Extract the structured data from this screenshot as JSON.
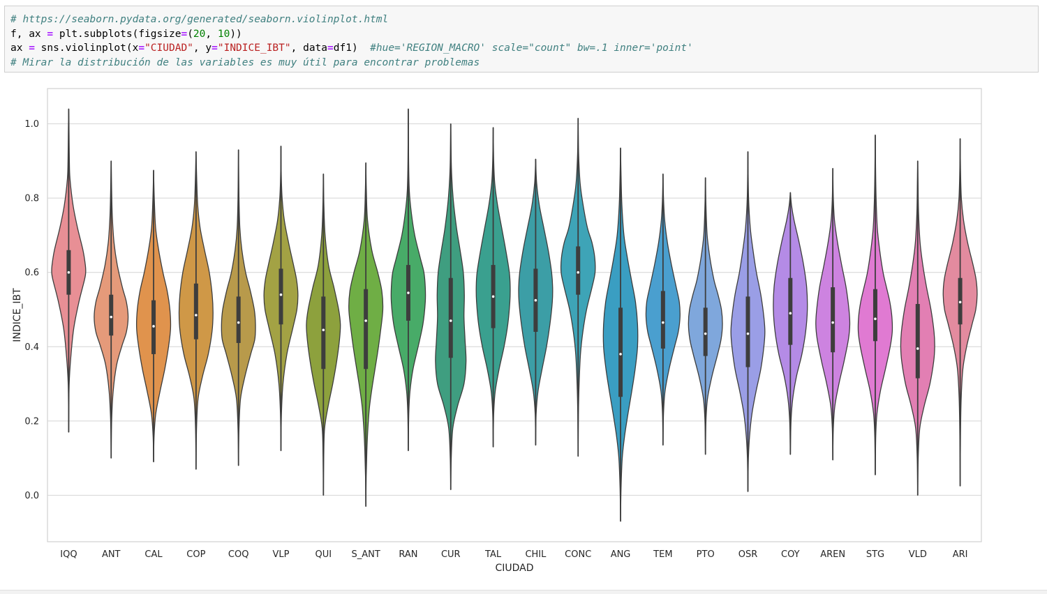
{
  "code_cell": {
    "lines": [
      [
        {
          "t": "# https://seaborn.pydata.org/generated/seaborn.violinplot.html",
          "c": "cm"
        }
      ],
      [
        {
          "t": "f, ax ",
          "c": ""
        },
        {
          "t": "=",
          "c": "op"
        },
        {
          "t": " plt.subplots(figsize",
          "c": ""
        },
        {
          "t": "=",
          "c": "op"
        },
        {
          "t": "(",
          "c": ""
        },
        {
          "t": "20",
          "c": "num"
        },
        {
          "t": ", ",
          "c": ""
        },
        {
          "t": "10",
          "c": "num"
        },
        {
          "t": "))",
          "c": ""
        }
      ],
      [
        {
          "t": "ax ",
          "c": ""
        },
        {
          "t": "=",
          "c": "op"
        },
        {
          "t": " sns.violinplot(x",
          "c": ""
        },
        {
          "t": "=",
          "c": "op"
        },
        {
          "t": "\"CIUDAD\"",
          "c": "str"
        },
        {
          "t": ", y",
          "c": ""
        },
        {
          "t": "=",
          "c": "op"
        },
        {
          "t": "\"INDICE_IBT\"",
          "c": "str"
        },
        {
          "t": ", data",
          "c": ""
        },
        {
          "t": "=",
          "c": "op"
        },
        {
          "t": "df1)  ",
          "c": ""
        },
        {
          "t": "#hue='REGION_MACRO' scale=\"count\" bw=.1 inner='point'",
          "c": "cm"
        }
      ],
      [
        {
          "t": "# Mirar la distribución de las variables es muy útil para encontrar problemas",
          "c": "cm"
        }
      ]
    ]
  },
  "chart_data": {
    "type": "violin",
    "xlabel": "CIUDAD",
    "ylabel": "INDICE_IBT",
    "ylim": [
      -0.125,
      1.095
    ],
    "yticks": [
      0.0,
      0.2,
      0.4,
      0.6,
      0.8,
      1.0
    ],
    "ytick_labels": [
      "0.0",
      "0.2",
      "0.4",
      "0.6",
      "0.8",
      "1.0"
    ],
    "grid": true,
    "categories": [
      "IQQ",
      "ANT",
      "CAL",
      "COP",
      "COQ",
      "VLP",
      "QUI",
      "S_ANT",
      "RAN",
      "CUR",
      "TAL",
      "CHIL",
      "CONC",
      "ANG",
      "TEM",
      "PTO",
      "OSR",
      "COY",
      "AREN",
      "STG",
      "VLD",
      "ARI"
    ],
    "colors": [
      "#e88f95",
      "#e59a7a",
      "#e0934d",
      "#cf9847",
      "#b89a4b",
      "#a3a244",
      "#8da13d",
      "#6fae45",
      "#48ab68",
      "#3f9e80",
      "#3aa08f",
      "#3c9ea6",
      "#3ea4b7",
      "#3a9ec2",
      "#4a9fcf",
      "#7fa7dc",
      "#9a9ee6",
      "#b48be6",
      "#cd83e0",
      "#e07ad2",
      "#e27fb3",
      "#e38b9f"
    ],
    "stats": [
      {
        "min": 0.17,
        "max": 1.04,
        "q1": 0.54,
        "median": 0.6,
        "q3": 0.66
      },
      {
        "min": 0.1,
        "max": 0.9,
        "q1": 0.43,
        "median": 0.48,
        "q3": 0.54
      },
      {
        "min": 0.09,
        "max": 0.875,
        "q1": 0.38,
        "median": 0.455,
        "q3": 0.525
      },
      {
        "min": 0.07,
        "max": 0.925,
        "q1": 0.42,
        "median": 0.485,
        "q3": 0.57
      },
      {
        "min": 0.08,
        "max": 0.93,
        "q1": 0.41,
        "median": 0.465,
        "q3": 0.535
      },
      {
        "min": 0.12,
        "max": 0.94,
        "q1": 0.46,
        "median": 0.54,
        "q3": 0.61
      },
      {
        "min": 0.0,
        "max": 0.865,
        "q1": 0.34,
        "median": 0.445,
        "q3": 0.535
      },
      {
        "min": -0.03,
        "max": 0.895,
        "q1": 0.34,
        "median": 0.47,
        "q3": 0.555
      },
      {
        "min": 0.12,
        "max": 1.04,
        "q1": 0.47,
        "median": 0.545,
        "q3": 0.62
      },
      {
        "min": 0.015,
        "max": 1.0,
        "q1": 0.37,
        "median": 0.47,
        "q3": 0.585
      },
      {
        "min": 0.13,
        "max": 0.99,
        "q1": 0.45,
        "median": 0.535,
        "q3": 0.62
      },
      {
        "min": 0.135,
        "max": 0.905,
        "q1": 0.44,
        "median": 0.525,
        "q3": 0.61
      },
      {
        "min": 0.105,
        "max": 1.015,
        "q1": 0.54,
        "median": 0.6,
        "q3": 0.67
      },
      {
        "min": -0.07,
        "max": 0.935,
        "q1": 0.265,
        "median": 0.38,
        "q3": 0.505
      },
      {
        "min": 0.135,
        "max": 0.865,
        "q1": 0.395,
        "median": 0.465,
        "q3": 0.55
      },
      {
        "min": 0.11,
        "max": 0.855,
        "q1": 0.375,
        "median": 0.435,
        "q3": 0.505
      },
      {
        "min": 0.01,
        "max": 0.925,
        "q1": 0.345,
        "median": 0.435,
        "q3": 0.535
      },
      {
        "min": 0.11,
        "max": 0.815,
        "q1": 0.405,
        "median": 0.49,
        "q3": 0.585
      },
      {
        "min": 0.095,
        "max": 0.88,
        "q1": 0.385,
        "median": 0.465,
        "q3": 0.56
      },
      {
        "min": 0.055,
        "max": 0.97,
        "q1": 0.415,
        "median": 0.475,
        "q3": 0.555
      },
      {
        "min": 0.0,
        "max": 0.9,
        "q1": 0.315,
        "median": 0.395,
        "q3": 0.515
      },
      {
        "min": 0.025,
        "max": 0.96,
        "q1": 0.46,
        "median": 0.52,
        "q3": 0.585
      }
    ],
    "density": [
      {
        "y": [
          0.17,
          0.3,
          0.38,
          0.45,
          0.52,
          0.58,
          0.6,
          0.62,
          0.66,
          0.72,
          0.78,
          0.85,
          0.9,
          0.98,
          1.04
        ],
        "w": [
          0.0,
          0.03,
          0.14,
          0.3,
          0.6,
          0.93,
          1.0,
          0.98,
          0.84,
          0.52,
          0.26,
          0.08,
          0.04,
          0.02,
          0.0
        ]
      },
      {
        "y": [
          0.1,
          0.2,
          0.28,
          0.35,
          0.4,
          0.44,
          0.48,
          0.52,
          0.56,
          0.62,
          0.68,
          0.75,
          0.82,
          0.9
        ],
        "w": [
          0.0,
          0.03,
          0.12,
          0.32,
          0.62,
          0.9,
          1.0,
          0.9,
          0.66,
          0.36,
          0.17,
          0.07,
          0.03,
          0.0
        ]
      },
      {
        "y": [
          0.09,
          0.16,
          0.22,
          0.28,
          0.34,
          0.4,
          0.45,
          0.5,
          0.55,
          0.6,
          0.66,
          0.72,
          0.8,
          0.875
        ],
        "w": [
          0.0,
          0.03,
          0.13,
          0.38,
          0.66,
          0.88,
          1.0,
          0.96,
          0.8,
          0.55,
          0.3,
          0.12,
          0.04,
          0.0
        ]
      },
      {
        "y": [
          0.07,
          0.18,
          0.26,
          0.32,
          0.38,
          0.44,
          0.49,
          0.54,
          0.6,
          0.66,
          0.72,
          0.78,
          0.85,
          0.925
        ],
        "w": [
          0.0,
          0.03,
          0.12,
          0.38,
          0.72,
          0.94,
          1.0,
          0.95,
          0.78,
          0.5,
          0.24,
          0.1,
          0.04,
          0.0
        ]
      },
      {
        "y": [
          0.08,
          0.18,
          0.26,
          0.32,
          0.38,
          0.42,
          0.46,
          0.5,
          0.55,
          0.6,
          0.66,
          0.72,
          0.8,
          0.93
        ],
        "w": [
          0.0,
          0.03,
          0.12,
          0.38,
          0.72,
          0.96,
          1.0,
          0.93,
          0.7,
          0.42,
          0.2,
          0.08,
          0.03,
          0.0
        ]
      },
      {
        "y": [
          0.12,
          0.22,
          0.3,
          0.38,
          0.45,
          0.5,
          0.54,
          0.58,
          0.62,
          0.68,
          0.74,
          0.8,
          0.86,
          0.94
        ],
        "w": [
          0.0,
          0.03,
          0.12,
          0.35,
          0.7,
          0.94,
          1.0,
          0.92,
          0.74,
          0.45,
          0.2,
          0.07,
          0.02,
          0.0
        ]
      },
      {
        "y": [
          0.0,
          0.1,
          0.18,
          0.24,
          0.3,
          0.36,
          0.42,
          0.46,
          0.5,
          0.56,
          0.62,
          0.7,
          0.78,
          0.865
        ],
        "w": [
          0.0,
          0.02,
          0.07,
          0.28,
          0.55,
          0.78,
          0.95,
          1.0,
          0.9,
          0.62,
          0.3,
          0.1,
          0.03,
          0.0
        ]
      },
      {
        "y": [
          -0.03,
          0.05,
          0.12,
          0.18,
          0.24,
          0.3,
          0.38,
          0.44,
          0.5,
          0.55,
          0.6,
          0.66,
          0.74,
          0.82,
          0.895
        ],
        "w": [
          0.0,
          0.02,
          0.06,
          0.12,
          0.22,
          0.4,
          0.68,
          0.86,
          1.0,
          0.94,
          0.7,
          0.35,
          0.1,
          0.03,
          0.0
        ]
      },
      {
        "y": [
          0.12,
          0.22,
          0.28,
          0.34,
          0.4,
          0.46,
          0.52,
          0.56,
          0.6,
          0.64,
          0.7,
          0.76,
          0.82,
          0.9,
          1.04
        ],
        "w": [
          0.0,
          0.03,
          0.1,
          0.28,
          0.58,
          0.86,
          1.0,
          1.0,
          0.92,
          0.7,
          0.38,
          0.18,
          0.06,
          0.02,
          0.0
        ]
      },
      {
        "y": [
          0.015,
          0.1,
          0.18,
          0.24,
          0.3,
          0.36,
          0.42,
          0.48,
          0.54,
          0.6,
          0.66,
          0.72,
          0.8,
          0.88,
          1.0
        ],
        "w": [
          0.0,
          0.03,
          0.12,
          0.4,
          0.78,
          0.9,
          0.84,
          0.78,
          0.8,
          0.74,
          0.55,
          0.34,
          0.14,
          0.04,
          0.0
        ]
      },
      {
        "y": [
          0.13,
          0.22,
          0.28,
          0.34,
          0.4,
          0.46,
          0.52,
          0.56,
          0.6,
          0.66,
          0.72,
          0.78,
          0.84,
          0.9,
          0.99
        ],
        "w": [
          0.0,
          0.03,
          0.12,
          0.35,
          0.64,
          0.86,
          0.98,
          1.0,
          0.95,
          0.74,
          0.5,
          0.26,
          0.09,
          0.03,
          0.0
        ]
      },
      {
        "y": [
          0.135,
          0.22,
          0.28,
          0.34,
          0.4,
          0.46,
          0.52,
          0.56,
          0.6,
          0.66,
          0.72,
          0.78,
          0.84,
          0.905
        ],
        "w": [
          0.0,
          0.03,
          0.14,
          0.38,
          0.64,
          0.84,
          0.98,
          1.0,
          0.94,
          0.74,
          0.48,
          0.22,
          0.06,
          0.0
        ]
      },
      {
        "y": [
          0.105,
          0.22,
          0.3,
          0.38,
          0.44,
          0.5,
          0.56,
          0.6,
          0.64,
          0.68,
          0.72,
          0.78,
          0.84,
          0.92,
          1.015
        ],
        "w": [
          0.0,
          0.02,
          0.06,
          0.14,
          0.28,
          0.5,
          0.82,
          1.0,
          0.98,
          0.82,
          0.55,
          0.3,
          0.12,
          0.03,
          0.0
        ]
      },
      {
        "y": [
          -0.07,
          0.02,
          0.1,
          0.16,
          0.22,
          0.28,
          0.34,
          0.4,
          0.46,
          0.52,
          0.58,
          0.64,
          0.7,
          0.78,
          0.86,
          0.935
        ],
        "w": [
          0.0,
          0.03,
          0.1,
          0.24,
          0.44,
          0.66,
          0.86,
          1.0,
          1.0,
          0.88,
          0.64,
          0.4,
          0.2,
          0.08,
          0.03,
          0.0
        ]
      },
      {
        "y": [
          0.135,
          0.22,
          0.28,
          0.34,
          0.4,
          0.44,
          0.48,
          0.52,
          0.56,
          0.62,
          0.68,
          0.74,
          0.8,
          0.865
        ],
        "w": [
          0.0,
          0.03,
          0.12,
          0.36,
          0.68,
          0.9,
          1.0,
          0.96,
          0.78,
          0.5,
          0.26,
          0.1,
          0.03,
          0.0
        ]
      },
      {
        "y": [
          0.11,
          0.2,
          0.26,
          0.32,
          0.38,
          0.42,
          0.46,
          0.5,
          0.54,
          0.58,
          0.64,
          0.7,
          0.78,
          0.855
        ],
        "w": [
          0.0,
          0.03,
          0.12,
          0.38,
          0.72,
          0.92,
          1.0,
          0.94,
          0.74,
          0.5,
          0.26,
          0.1,
          0.03,
          0.0
        ]
      },
      {
        "y": [
          0.01,
          0.1,
          0.16,
          0.22,
          0.28,
          0.34,
          0.4,
          0.44,
          0.48,
          0.54,
          0.6,
          0.66,
          0.72,
          0.8,
          0.925
        ],
        "w": [
          0.0,
          0.03,
          0.1,
          0.24,
          0.48,
          0.76,
          0.94,
          1.0,
          0.94,
          0.76,
          0.5,
          0.3,
          0.14,
          0.04,
          0.0
        ]
      },
      {
        "y": [
          0.11,
          0.2,
          0.26,
          0.32,
          0.38,
          0.44,
          0.5,
          0.56,
          0.62,
          0.68,
          0.74,
          0.78,
          0.815
        ],
        "w": [
          0.0,
          0.04,
          0.14,
          0.36,
          0.68,
          0.9,
          1.0,
          0.96,
          0.78,
          0.52,
          0.22,
          0.07,
          0.0
        ]
      },
      {
        "y": [
          0.095,
          0.18,
          0.24,
          0.3,
          0.36,
          0.42,
          0.46,
          0.5,
          0.56,
          0.62,
          0.68,
          0.74,
          0.8,
          0.88
        ],
        "w": [
          0.0,
          0.03,
          0.12,
          0.36,
          0.66,
          0.92,
          1.0,
          0.95,
          0.78,
          0.52,
          0.28,
          0.1,
          0.03,
          0.0
        ]
      },
      {
        "y": [
          0.055,
          0.16,
          0.22,
          0.28,
          0.34,
          0.4,
          0.44,
          0.48,
          0.52,
          0.56,
          0.6,
          0.66,
          0.72,
          0.8,
          0.88,
          0.97
        ],
        "w": [
          0.0,
          0.03,
          0.1,
          0.3,
          0.6,
          0.88,
          1.0,
          0.98,
          0.86,
          0.66,
          0.46,
          0.26,
          0.12,
          0.05,
          0.02,
          0.0
        ]
      },
      {
        "y": [
          0.0,
          0.1,
          0.18,
          0.24,
          0.3,
          0.36,
          0.4,
          0.44,
          0.5,
          0.56,
          0.62,
          0.68,
          0.76,
          0.84,
          0.9
        ],
        "w": [
          0.0,
          0.03,
          0.12,
          0.38,
          0.72,
          0.94,
          1.0,
          0.96,
          0.78,
          0.52,
          0.3,
          0.14,
          0.05,
          0.02,
          0.0
        ]
      },
      {
        "y": [
          0.025,
          0.16,
          0.26,
          0.34,
          0.4,
          0.46,
          0.5,
          0.54,
          0.58,
          0.62,
          0.68,
          0.74,
          0.8,
          0.88,
          0.96
        ],
        "w": [
          0.0,
          0.02,
          0.06,
          0.16,
          0.38,
          0.7,
          0.92,
          1.0,
          0.94,
          0.76,
          0.44,
          0.2,
          0.07,
          0.02,
          0.0
        ]
      }
    ]
  }
}
